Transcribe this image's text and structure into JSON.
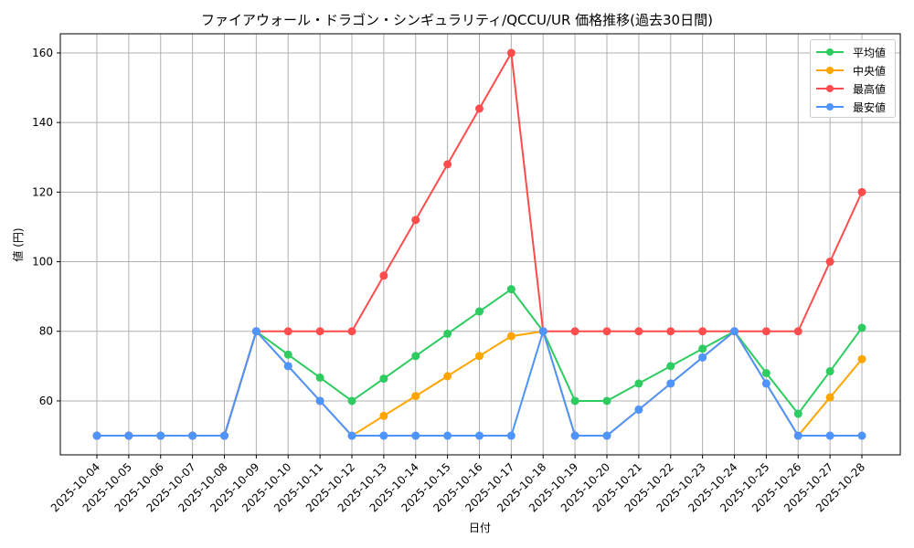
{
  "chart_title": "ファイアウォール・ドラゴン・シンギュラリティ/QCCU/UR 価格推移(過去30日間)",
  "chart_data": {
    "type": "line",
    "title": "ファイアウォール・ドラゴン・シンギュラリティ/QCCU/UR 価格推移(過去30日間)",
    "xlabel": "日付",
    "ylabel": "値 (円)",
    "x": [
      "2025-10-04",
      "2025-10-05",
      "2025-10-06",
      "2025-10-07",
      "2025-10-08",
      "2025-10-09",
      "2025-10-10",
      "2025-10-11",
      "2025-10-12",
      "2025-10-13",
      "2025-10-14",
      "2025-10-15",
      "2025-10-16",
      "2025-10-17",
      "2025-10-18",
      "2025-10-19",
      "2025-10-20",
      "2025-10-21",
      "2025-10-22",
      "2025-10-23",
      "2025-10-24",
      "2025-10-25",
      "2025-10-26",
      "2025-10-27",
      "2025-10-28"
    ],
    "series": [
      {
        "name": "平均値",
        "color": "#2ecc60",
        "values": [
          50,
          50,
          50,
          50,
          50,
          80,
          73.3,
          66.7,
          60,
          66.4,
          72.9,
          79.3,
          85.7,
          92.1,
          80,
          60,
          60,
          65,
          70,
          75,
          80,
          68,
          56.3,
          68.5,
          81
        ]
      },
      {
        "name": "中央値",
        "color": "#ffa500",
        "values": [
          50,
          50,
          50,
          50,
          50,
          80,
          70,
          60,
          50,
          55.7,
          61.4,
          67.1,
          72.9,
          78.6,
          80,
          50,
          50,
          57.5,
          65,
          72.5,
          80,
          65,
          50,
          61,
          72
        ]
      },
      {
        "name": "最高値",
        "color": "#ff4d4d",
        "values": [
          50,
          50,
          50,
          50,
          50,
          80,
          80,
          80,
          80,
          96,
          112,
          128,
          144,
          160,
          80,
          80,
          80,
          80,
          80,
          80,
          80,
          80,
          80,
          100,
          120
        ]
      },
      {
        "name": "最安値",
        "color": "#4d94ff",
        "values": [
          50,
          50,
          50,
          50,
          50,
          80,
          70,
          60,
          50,
          50,
          50,
          50,
          50,
          50,
          80,
          50,
          50,
          57.5,
          65,
          72.5,
          80,
          65,
          50,
          50,
          50
        ]
      }
    ],
    "yticks": [
      60,
      80,
      100,
      120,
      140,
      160
    ],
    "ylim": [
      44.5,
      165.5
    ],
    "grid": true,
    "legend_position": "upper right"
  }
}
